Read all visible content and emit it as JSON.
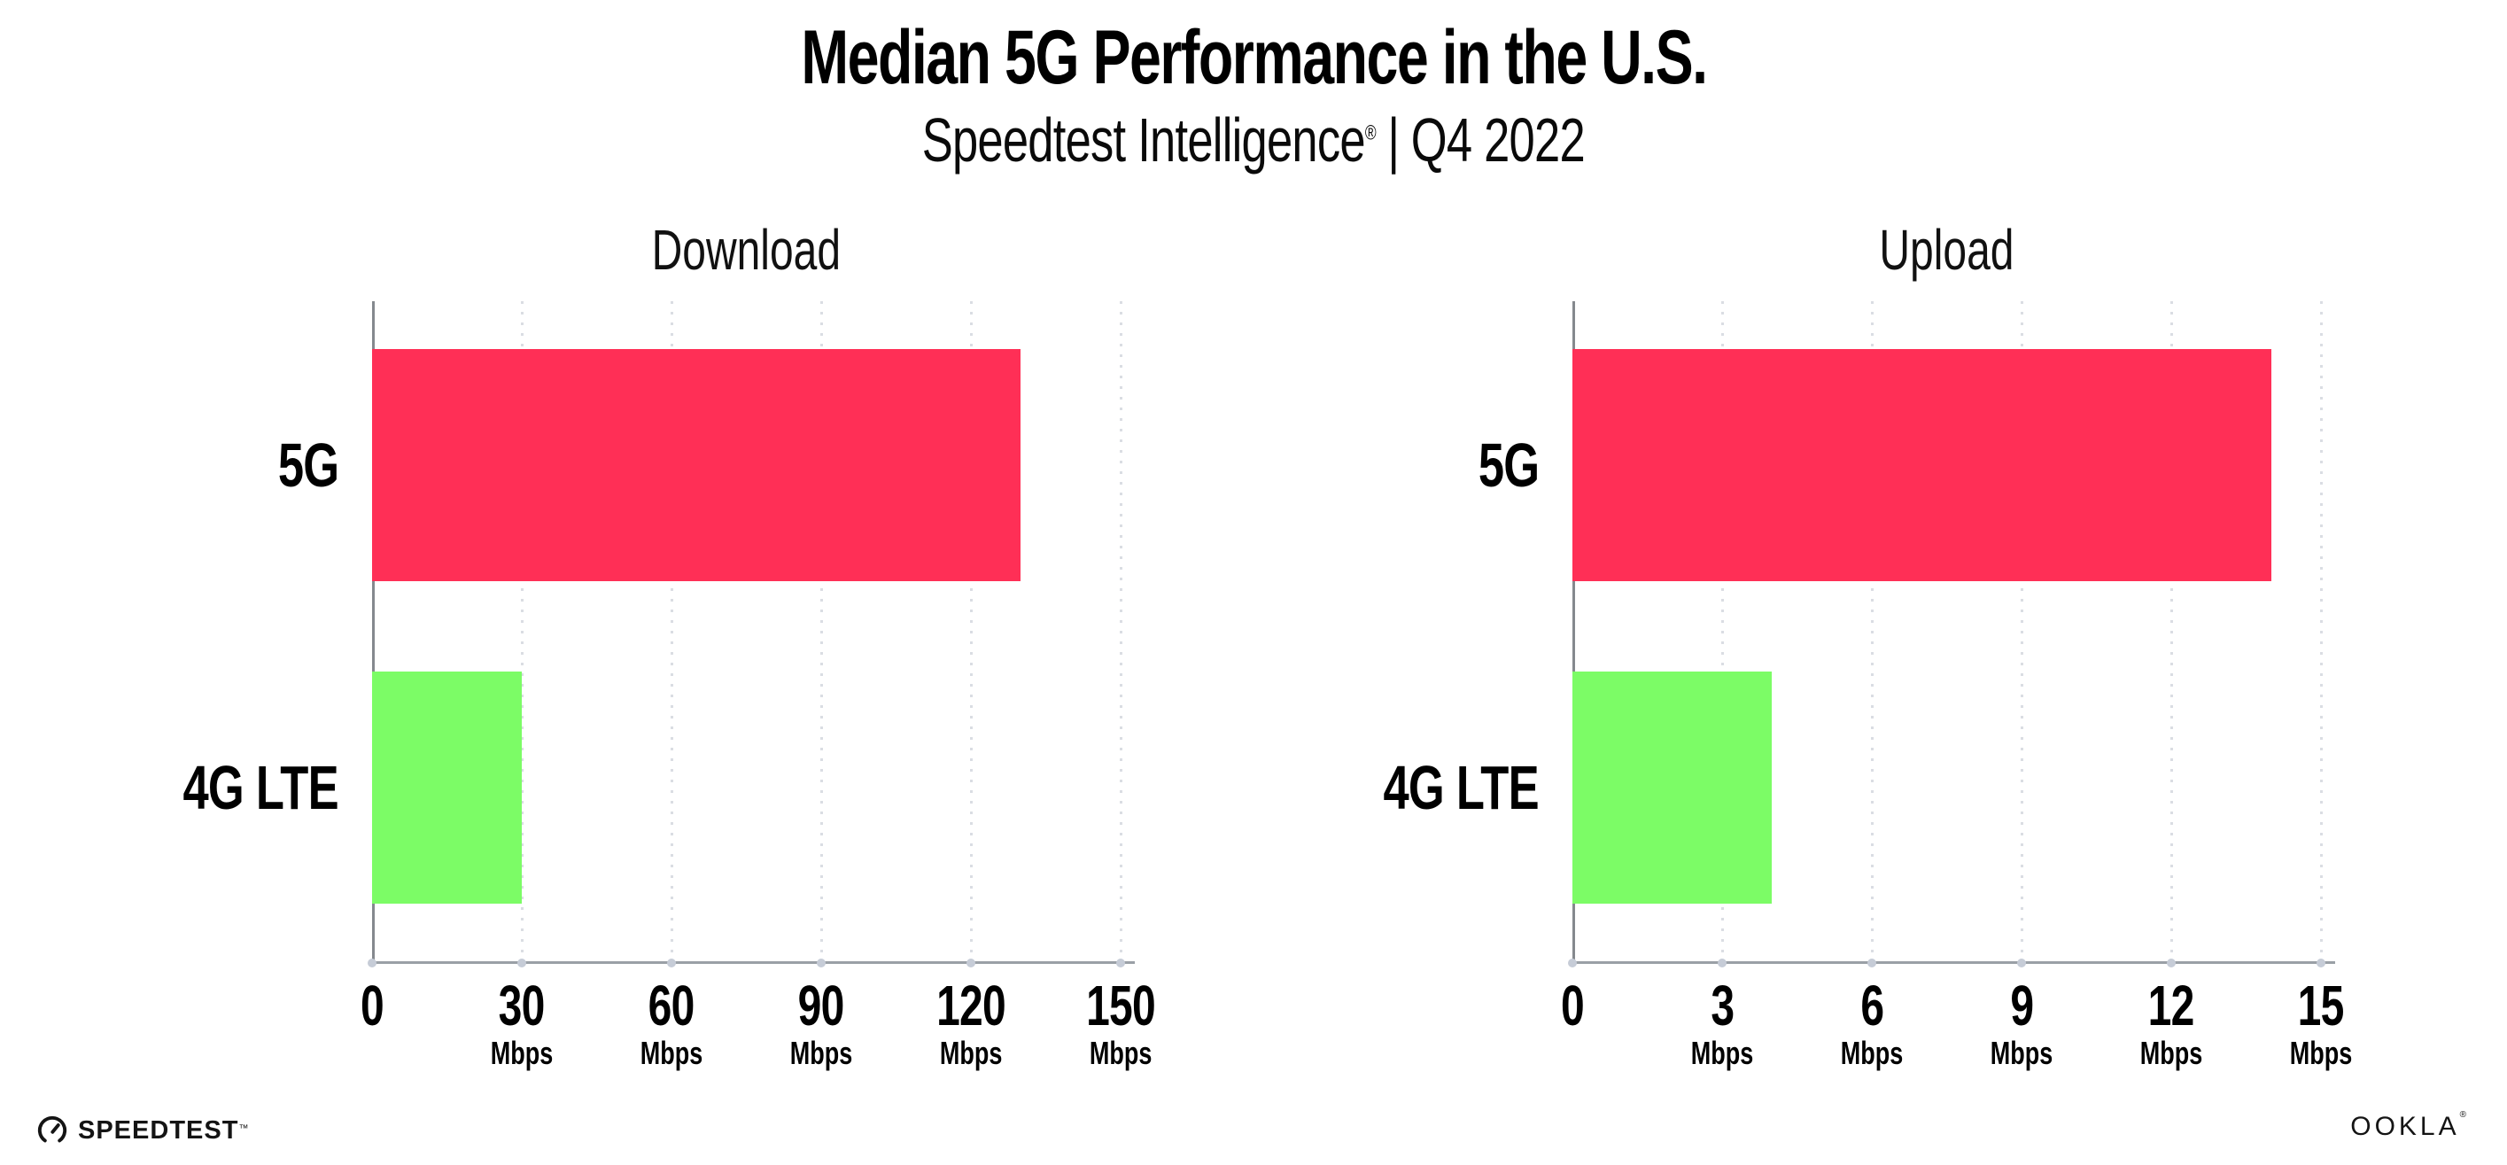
{
  "header": {
    "title": "Median 5G Performance in the U.S.",
    "subtitle_brand": "Speedtest Intelligence",
    "subtitle_reg": "®",
    "subtitle_sep": "|",
    "subtitle_period": "Q4 2022"
  },
  "colors": {
    "bar_5g": "#FF2F56",
    "bar_4g_lte": "#7CFC66"
  },
  "charts": [
    {
      "title": "Download",
      "xmax": 150,
      "ticks": [
        {
          "num": "0",
          "unit": ""
        },
        {
          "num": "30",
          "unit": "Mbps"
        },
        {
          "num": "60",
          "unit": "Mbps"
        },
        {
          "num": "90",
          "unit": "Mbps"
        },
        {
          "num": "120",
          "unit": "Mbps"
        },
        {
          "num": "150",
          "unit": "Mbps"
        }
      ],
      "bars": [
        {
          "label": "5G",
          "value": 130,
          "color": "#FF2F56"
        },
        {
          "label": "4G LTE",
          "value": 30,
          "color": "#7CFC66"
        }
      ]
    },
    {
      "title": "Upload",
      "xmax": 15,
      "ticks": [
        {
          "num": "0",
          "unit": ""
        },
        {
          "num": "3",
          "unit": "Mbps"
        },
        {
          "num": "6",
          "unit": "Mbps"
        },
        {
          "num": "9",
          "unit": "Mbps"
        },
        {
          "num": "12",
          "unit": "Mbps"
        },
        {
          "num": "15",
          "unit": "Mbps"
        }
      ],
      "bars": [
        {
          "label": "5G",
          "value": 14,
          "color": "#FF2F56"
        },
        {
          "label": "4G LTE",
          "value": 4,
          "color": "#7CFC66"
        }
      ]
    }
  ],
  "footer": {
    "speedtest_label": "SPEEDTEST",
    "speedtest_mark": "™",
    "ookla_label": "OOKLA",
    "ookla_mark": "®"
  },
  "chart_data": [
    {
      "type": "bar",
      "orientation": "horizontal",
      "title": "Download",
      "categories": [
        "5G",
        "4G LTE"
      ],
      "values": [
        130,
        30
      ],
      "xlabel": "Mbps",
      "ylabel": "",
      "xlim": [
        0,
        150
      ],
      "xticks": [
        0,
        30,
        60,
        90,
        120,
        150
      ],
      "grid": true,
      "legend": false,
      "bar_colors": [
        "#FF2F56",
        "#7CFC66"
      ]
    },
    {
      "type": "bar",
      "orientation": "horizontal",
      "title": "Upload",
      "categories": [
        "5G",
        "4G LTE"
      ],
      "values": [
        14,
        4
      ],
      "xlabel": "Mbps",
      "ylabel": "",
      "xlim": [
        0,
        15
      ],
      "xticks": [
        0,
        3,
        6,
        9,
        12,
        15
      ],
      "grid": true,
      "legend": false,
      "bar_colors": [
        "#FF2F56",
        "#7CFC66"
      ]
    }
  ]
}
